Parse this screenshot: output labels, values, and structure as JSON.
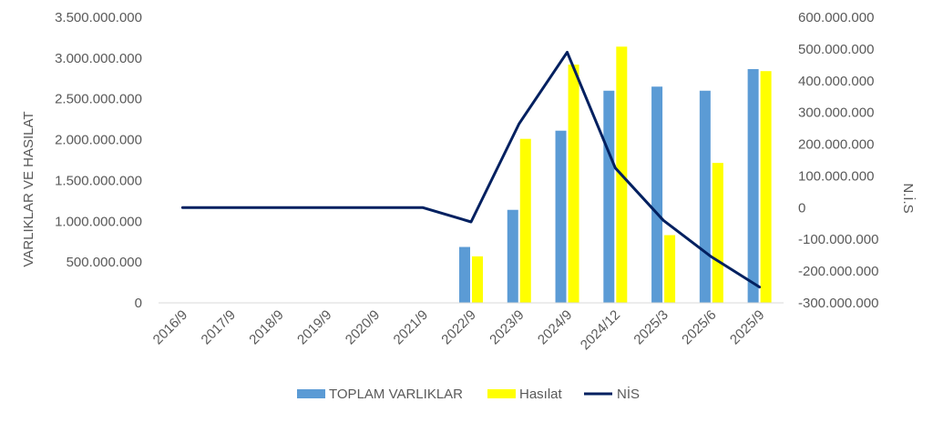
{
  "chart_data": {
    "type": "bar",
    "categories": [
      "2016/9",
      "2017/9",
      "2018/9",
      "2019/9",
      "2020/9",
      "2021/9",
      "2022/9",
      "2023/9",
      "2024/9",
      "2024/12",
      "2025/3",
      "2025/6",
      "2025/9"
    ],
    "series": [
      {
        "name": "TOPLAM VARLIKLAR",
        "type": "bar",
        "axis": "left",
        "color": "#5B9BD5",
        "values": [
          null,
          null,
          null,
          null,
          null,
          null,
          685000000,
          1140000000,
          2110000000,
          2600000000,
          2650000000,
          2600000000,
          2865000000
        ]
      },
      {
        "name": "Hasılat",
        "type": "bar",
        "axis": "left",
        "color": "#FFFF00",
        "values": [
          null,
          null,
          null,
          null,
          null,
          null,
          570000000,
          2010000000,
          2920000000,
          3140000000,
          830000000,
          1715000000,
          2840000000
        ]
      },
      {
        "name": "NİS",
        "type": "line",
        "axis": "right",
        "color": "#002060",
        "values": [
          0,
          0,
          0,
          0,
          0,
          0,
          -45000000,
          265000000,
          490000000,
          125000000,
          -40000000,
          -155000000,
          -250000000
        ]
      }
    ],
    "ylabel": "VARLIKLAR VE HASILAT",
    "y2label": "N.İ.S",
    "ylim": [
      0,
      3500000000
    ],
    "y2lim": [
      -300000000,
      600000000
    ],
    "yticks": [
      "3.500.000.000",
      "3.000.000.000",
      "2.500.000.000",
      "2.000.000.000",
      "1.500.000.000",
      "1.000.000.000",
      "500.000.000",
      "0"
    ],
    "y2ticks": [
      "600.000.000",
      "500.000.000",
      "400.000.000",
      "300.000.000",
      "200.000.000",
      "100.000.000",
      "0",
      "-100.000.000",
      "-200.000.000",
      "-300.000.000"
    ],
    "legend_position": "bottom",
    "grid": false
  }
}
